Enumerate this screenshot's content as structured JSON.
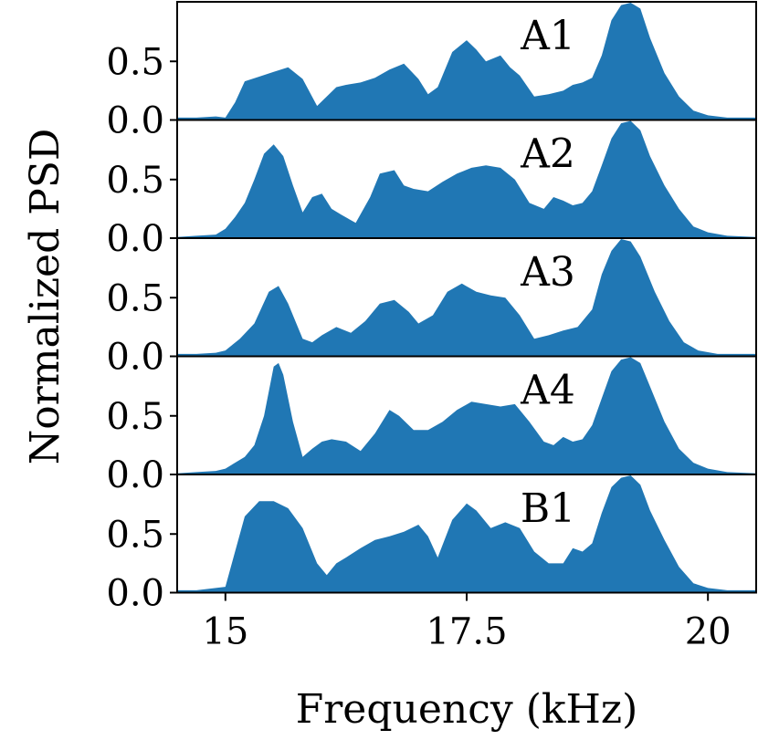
{
  "chart_data": {
    "type": "area",
    "xlabel": "Frequency (kHz)",
    "ylabel": "Normalized PSD",
    "xlim": [
      14.5,
      20.5
    ],
    "ylim": [
      0,
      1.0
    ],
    "xticks": [
      15,
      17.5,
      20
    ],
    "xtick_labels": [
      "15",
      "17.5",
      "20"
    ],
    "yticks": [
      0,
      0.5
    ],
    "ytick_labels": [
      "0.0",
      "0.5"
    ],
    "fill_color": "#2077b4",
    "grid": false,
    "panels": [
      {
        "label": "A1",
        "x": [
          14.5,
          14.7,
          14.9,
          15.0,
          15.1,
          15.2,
          15.35,
          15.5,
          15.65,
          15.8,
          15.95,
          16.05,
          16.15,
          16.25,
          16.4,
          16.55,
          16.7,
          16.85,
          17.0,
          17.1,
          17.2,
          17.35,
          17.5,
          17.6,
          17.7,
          17.85,
          17.95,
          18.05,
          18.2,
          18.35,
          18.5,
          18.6,
          18.7,
          18.8,
          18.9,
          19.0,
          19.1,
          19.2,
          19.3,
          19.4,
          19.55,
          19.7,
          19.85,
          20.0,
          20.2,
          20.5
        ],
        "y": [
          0.02,
          0.02,
          0.03,
          0.02,
          0.15,
          0.33,
          0.37,
          0.41,
          0.45,
          0.35,
          0.12,
          0.2,
          0.28,
          0.3,
          0.32,
          0.36,
          0.43,
          0.48,
          0.35,
          0.22,
          0.28,
          0.58,
          0.68,
          0.6,
          0.5,
          0.55,
          0.45,
          0.38,
          0.2,
          0.22,
          0.25,
          0.3,
          0.32,
          0.36,
          0.55,
          0.85,
          0.98,
          1.0,
          0.95,
          0.7,
          0.4,
          0.2,
          0.08,
          0.04,
          0.02,
          0.02
        ]
      },
      {
        "label": "A2",
        "x": [
          14.5,
          14.7,
          14.9,
          15.0,
          15.1,
          15.2,
          15.3,
          15.4,
          15.5,
          15.6,
          15.7,
          15.8,
          15.9,
          16.0,
          16.1,
          16.2,
          16.35,
          16.5,
          16.6,
          16.75,
          16.85,
          16.95,
          17.1,
          17.25,
          17.4,
          17.55,
          17.7,
          17.85,
          18.0,
          18.15,
          18.3,
          18.4,
          18.5,
          18.6,
          18.7,
          18.8,
          18.9,
          19.0,
          19.1,
          19.2,
          19.3,
          19.4,
          19.55,
          19.7,
          19.85,
          20.0,
          20.2,
          20.5
        ],
        "y": [
          0.01,
          0.02,
          0.03,
          0.08,
          0.18,
          0.3,
          0.5,
          0.72,
          0.8,
          0.7,
          0.45,
          0.22,
          0.35,
          0.38,
          0.25,
          0.2,
          0.13,
          0.35,
          0.55,
          0.58,
          0.45,
          0.42,
          0.4,
          0.48,
          0.55,
          0.6,
          0.62,
          0.6,
          0.5,
          0.3,
          0.25,
          0.35,
          0.32,
          0.28,
          0.3,
          0.4,
          0.62,
          0.85,
          0.98,
          1.0,
          0.92,
          0.7,
          0.45,
          0.25,
          0.1,
          0.05,
          0.02,
          0.01
        ]
      },
      {
        "label": "A3",
        "x": [
          14.5,
          14.7,
          14.9,
          15.0,
          15.15,
          15.3,
          15.45,
          15.55,
          15.65,
          15.8,
          15.9,
          16.0,
          16.15,
          16.3,
          16.45,
          16.6,
          16.75,
          16.9,
          17.0,
          17.15,
          17.3,
          17.45,
          17.6,
          17.75,
          17.9,
          18.05,
          18.2,
          18.35,
          18.5,
          18.65,
          18.8,
          18.9,
          19.0,
          19.1,
          19.2,
          19.3,
          19.45,
          19.6,
          19.75,
          19.9,
          20.1,
          20.5
        ],
        "y": [
          0.02,
          0.02,
          0.03,
          0.05,
          0.15,
          0.28,
          0.55,
          0.6,
          0.45,
          0.15,
          0.12,
          0.18,
          0.25,
          0.2,
          0.3,
          0.45,
          0.48,
          0.38,
          0.28,
          0.35,
          0.55,
          0.62,
          0.55,
          0.52,
          0.5,
          0.35,
          0.15,
          0.18,
          0.22,
          0.25,
          0.4,
          0.7,
          0.9,
          1.0,
          0.98,
          0.85,
          0.55,
          0.3,
          0.12,
          0.05,
          0.02,
          0.02
        ]
      },
      {
        "label": "A4",
        "x": [
          14.5,
          14.7,
          14.9,
          15.0,
          15.1,
          15.2,
          15.3,
          15.4,
          15.5,
          15.55,
          15.6,
          15.7,
          15.8,
          15.9,
          16.0,
          16.1,
          16.25,
          16.4,
          16.55,
          16.7,
          16.8,
          16.95,
          17.1,
          17.25,
          17.4,
          17.55,
          17.7,
          17.85,
          18.0,
          18.15,
          18.3,
          18.4,
          18.5,
          18.6,
          18.7,
          18.8,
          18.9,
          19.0,
          19.1,
          19.2,
          19.3,
          19.4,
          19.55,
          19.7,
          19.85,
          20.0,
          20.2,
          20.5
        ],
        "y": [
          0.01,
          0.02,
          0.03,
          0.05,
          0.1,
          0.15,
          0.25,
          0.5,
          0.92,
          0.95,
          0.85,
          0.45,
          0.15,
          0.22,
          0.28,
          0.3,
          0.28,
          0.2,
          0.35,
          0.55,
          0.5,
          0.38,
          0.38,
          0.45,
          0.55,
          0.62,
          0.6,
          0.58,
          0.6,
          0.45,
          0.28,
          0.25,
          0.32,
          0.28,
          0.3,
          0.42,
          0.65,
          0.88,
          0.98,
          1.0,
          0.95,
          0.75,
          0.45,
          0.22,
          0.1,
          0.05,
          0.02,
          0.01
        ]
      },
      {
        "label": "B1",
        "x": [
          14.5,
          14.7,
          14.9,
          15.0,
          15.1,
          15.2,
          15.35,
          15.5,
          15.65,
          15.8,
          15.95,
          16.05,
          16.15,
          16.25,
          16.4,
          16.55,
          16.7,
          16.85,
          17.0,
          17.1,
          17.2,
          17.35,
          17.5,
          17.6,
          17.75,
          17.9,
          18.05,
          18.2,
          18.35,
          18.5,
          18.6,
          18.7,
          18.8,
          18.9,
          19.0,
          19.1,
          19.2,
          19.3,
          19.4,
          19.55,
          19.7,
          19.85,
          20.0,
          20.2,
          20.5
        ],
        "y": [
          0.02,
          0.02,
          0.04,
          0.05,
          0.35,
          0.65,
          0.78,
          0.78,
          0.72,
          0.55,
          0.25,
          0.15,
          0.25,
          0.3,
          0.38,
          0.45,
          0.48,
          0.52,
          0.58,
          0.48,
          0.3,
          0.62,
          0.76,
          0.7,
          0.55,
          0.6,
          0.55,
          0.35,
          0.25,
          0.25,
          0.38,
          0.35,
          0.42,
          0.68,
          0.9,
          0.98,
          1.0,
          0.92,
          0.7,
          0.45,
          0.22,
          0.08,
          0.04,
          0.02,
          0.02
        ]
      }
    ]
  }
}
